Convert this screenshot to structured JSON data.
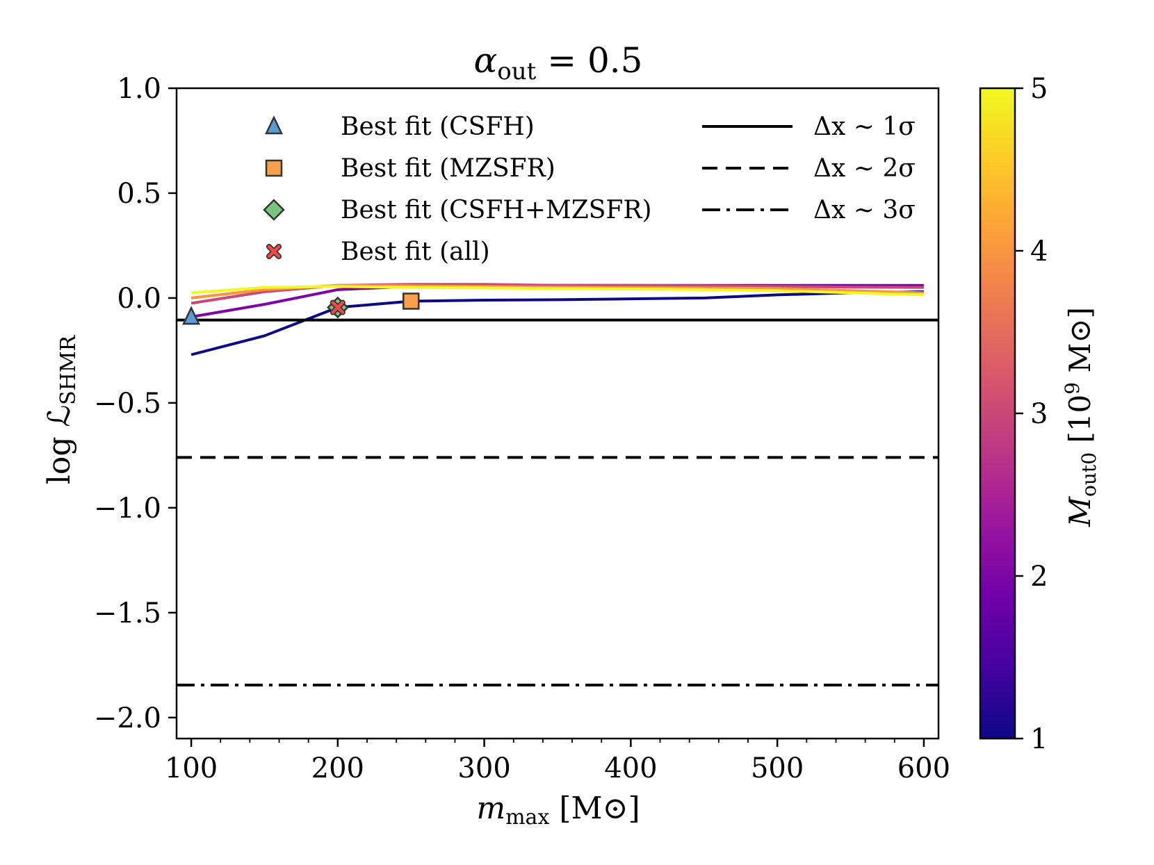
{
  "chart_data": {
    "type": "line",
    "title": "α_out = 0.5",
    "title_parts": {
      "base": "α",
      "sub": "out",
      "rest": " = 0.5"
    },
    "xlabel": "m_max [M⊙]",
    "xlabel_parts": {
      "base": "m",
      "sub": "max",
      "rest": " [M⊙]"
    },
    "ylabel": "log ℒ_SHMR",
    "ylabel_parts": {
      "base": "log ℒ",
      "sub": "SHMR"
    },
    "xlim": [
      90,
      610
    ],
    "ylim": [
      -2.1,
      1.0
    ],
    "xticks": [
      100,
      200,
      300,
      400,
      500,
      600
    ],
    "xtick_labels": [
      "100",
      "200",
      "300",
      "400",
      "500",
      "600"
    ],
    "xminor": [
      120,
      140,
      160,
      180,
      220,
      240,
      260,
      280,
      320,
      340,
      360,
      380,
      420,
      440,
      460,
      480,
      520,
      540,
      560,
      580
    ],
    "yticks": [
      1.0,
      0.5,
      0.0,
      -0.5,
      -1.0,
      -1.5,
      -2.0
    ],
    "ytick_labels": [
      "1.0",
      "0.5",
      "0.0",
      "−0.5",
      "−1.0",
      "−1.5",
      "−2.0"
    ],
    "series": [
      {
        "name": "M_out0 = 1",
        "color": "#0d0887",
        "x": [
          100,
          150,
          200,
          250,
          300,
          350,
          400,
          450,
          500,
          550,
          600
        ],
        "values": [
          -0.27,
          -0.18,
          -0.045,
          -0.015,
          -0.01,
          -0.008,
          -0.004,
          0.0,
          0.015,
          0.025,
          0.03
        ]
      },
      {
        "name": "M_out0 = 2",
        "color": "#7e03a8",
        "x": [
          100,
          150,
          200,
          250,
          300,
          350,
          400,
          450,
          500,
          550,
          600
        ],
        "values": [
          -0.09,
          -0.03,
          0.04,
          0.055,
          0.06,
          0.06,
          0.06,
          0.06,
          0.06,
          0.06,
          0.06
        ]
      },
      {
        "name": "M_out0 = 3",
        "color": "#cc4778",
        "x": [
          100,
          150,
          200,
          250,
          300,
          350,
          400,
          450,
          500,
          550,
          600
        ],
        "values": [
          -0.025,
          0.03,
          0.06,
          0.065,
          0.065,
          0.06,
          0.06,
          0.058,
          0.055,
          0.052,
          0.05
        ]
      },
      {
        "name": "M_out0 = 4",
        "color": "#f89540",
        "x": [
          100,
          150,
          200,
          250,
          300,
          350,
          400,
          450,
          500,
          550,
          600
        ],
        "values": [
          0.0,
          0.04,
          0.06,
          0.058,
          0.055,
          0.052,
          0.05,
          0.048,
          0.045,
          0.035,
          0.025
        ]
      },
      {
        "name": "M_out0 = 5",
        "color": "#f0f921",
        "x": [
          100,
          150,
          200,
          250,
          300,
          350,
          400,
          450,
          500,
          550,
          600
        ],
        "values": [
          0.025,
          0.05,
          0.055,
          0.05,
          0.048,
          0.045,
          0.043,
          0.04,
          0.035,
          0.025,
          0.015
        ]
      }
    ],
    "hlines": [
      {
        "y": -0.105,
        "style": "solid",
        "label": "Δx ∼ 1σ"
      },
      {
        "y": -0.76,
        "style": "dashed",
        "label": "Δx ∼ 2σ"
      },
      {
        "y": -1.845,
        "style": "dashdot",
        "label": "Δx ∼ 3σ"
      }
    ],
    "markers": [
      {
        "label": "Best fit (CSFH)",
        "shape": "triangle",
        "color": "#5b9bd5",
        "x": 100,
        "y": -0.09
      },
      {
        "label": "Best fit (MZSFR)",
        "shape": "square",
        "color": "#f6a04d",
        "x": 250,
        "y": -0.015
      },
      {
        "label": "Best fit (CSFH+MZSFR)",
        "shape": "diamond",
        "color": "#7bc47f",
        "x": 200,
        "y": -0.045
      },
      {
        "label": "Best fit (all)",
        "shape": "x",
        "color": "#ee4a4a",
        "x": 200,
        "y": -0.045
      }
    ],
    "colorbar": {
      "label": "M_out0 [10^9 M⊙]",
      "label_parts": {
        "base": "M",
        "sub": "out0",
        "rest": " [10",
        "sup": "9",
        "unit": " M⊙]"
      },
      "cmap": "plasma",
      "range": [
        1,
        5
      ],
      "ticks": [
        1,
        2,
        3,
        4,
        5
      ],
      "tick_labels": [
        "1",
        "2",
        "3",
        "4",
        "5"
      ],
      "stops": [
        "#0d0887",
        "#46039f",
        "#7201a8",
        "#9c179e",
        "#bd3786",
        "#d8576b",
        "#ed7953",
        "#fb9f3a",
        "#fdca26",
        "#f0f921"
      ]
    }
  }
}
